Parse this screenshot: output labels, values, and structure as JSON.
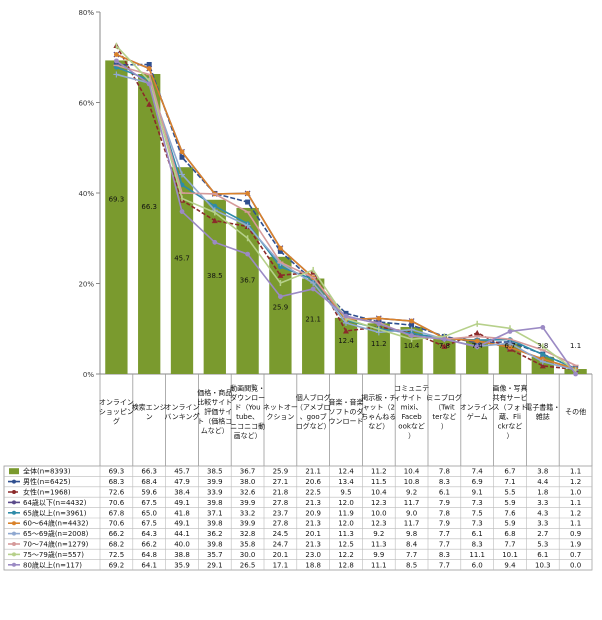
{
  "chart_data": {
    "type": "bar",
    "ylim": [
      0,
      80
    ],
    "yticks": [
      "0%",
      "20%",
      "40%",
      "60%",
      "80%"
    ],
    "categories": [
      "オンラインショッピング",
      "検索エンジン",
      "オンラインバンキング",
      "価格・商品比較サイト、評価サイト（価格コムなど）",
      "動画閲覧・ダウンロード（Youtube、ニコニコ動画など）",
      "ネットオークション",
      "個人ブログ（アメブロ、gooブログなど）",
      "音楽・音楽ソフトのダウンロード",
      "掲示板・チャット（2ちゃんねるなど）",
      "コミュニティサイト（mixi、Facebookなど）",
      "ミニブログ（Twitterなど）",
      "オンラインゲーム",
      "画像・写真共有サービス（フォト蔵、Flickrなど）",
      "電子書籍・雑誌",
      "その他"
    ],
    "series": [
      {
        "name": "全体(n=8393)",
        "color": "#7a9a2e",
        "values": [
          69.3,
          66.3,
          45.7,
          38.5,
          36.7,
          25.9,
          21.1,
          12.4,
          11.2,
          10.4,
          7.8,
          7.4,
          6.7,
          3.8,
          1.1
        ]
      },
      {
        "name": "男性(n=6425)",
        "color": "#2f4f8f",
        "values": [
          68.3,
          68.4,
          47.9,
          39.9,
          38.0,
          27.1,
          20.6,
          13.4,
          11.5,
          10.8,
          8.3,
          6.9,
          7.1,
          4.4,
          1.2
        ]
      },
      {
        "name": "女性(n=1968)",
        "color": "#8b2a2a",
        "values": [
          72.6,
          59.6,
          38.4,
          33.9,
          32.6,
          21.8,
          22.5,
          9.5,
          10.4,
          9.2,
          6.1,
          9.1,
          5.5,
          1.8,
          1.0
        ]
      },
      {
        "name": "64歳以下(n=4432)",
        "color": "#5a4a8a",
        "values": [
          70.6,
          67.5,
          49.1,
          39.8,
          39.9,
          27.8,
          21.3,
          12.0,
          12.3,
          11.7,
          7.9,
          7.3,
          5.9,
          3.3,
          1.1
        ]
      },
      {
        "name": "65歳以上(n=3961)",
        "color": "#2e8ba8",
        "values": [
          67.8,
          65.0,
          41.8,
          37.1,
          33.2,
          23.7,
          20.9,
          11.9,
          10.0,
          9.0,
          7.8,
          7.5,
          7.6,
          4.3,
          1.2
        ]
      },
      {
        "name": "60～64歳(n=4432)",
        "color": "#d9822b",
        "values": [
          70.6,
          67.5,
          49.1,
          39.8,
          39.9,
          27.8,
          21.3,
          12.0,
          12.3,
          11.7,
          7.9,
          7.3,
          5.9,
          3.3,
          1.1
        ]
      },
      {
        "name": "65～69歳(n=2008)",
        "color": "#8fa8d0",
        "values": [
          66.2,
          64.3,
          44.1,
          36.2,
          32.8,
          24.5,
          20.1,
          11.3,
          9.2,
          9.8,
          7.7,
          6.1,
          6.8,
          2.7,
          0.9
        ]
      },
      {
        "name": "70～74歳(n=1279)",
        "color": "#d59a9a",
        "values": [
          68.2,
          66.2,
          40.0,
          39.8,
          35.8,
          24.7,
          21.3,
          12.5,
          11.3,
          8.4,
          7.7,
          8.3,
          7.7,
          5.3,
          1.9
        ]
      },
      {
        "name": "75～79歳(n=557)",
        "color": "#b6d08a",
        "values": [
          72.5,
          64.8,
          38.8,
          35.7,
          30.0,
          20.1,
          23.0,
          12.2,
          9.9,
          7.7,
          8.3,
          11.1,
          10.1,
          6.1,
          0.7
        ]
      },
      {
        "name": "80歳以上(n=117)",
        "color": "#9b8ac4",
        "values": [
          69.2,
          64.1,
          35.9,
          29.1,
          26.5,
          17.1,
          18.8,
          12.8,
          11.1,
          8.5,
          7.7,
          6.0,
          9.4,
          10.3,
          0.0
        ]
      }
    ],
    "legend": "table-bottom",
    "grid": false
  }
}
